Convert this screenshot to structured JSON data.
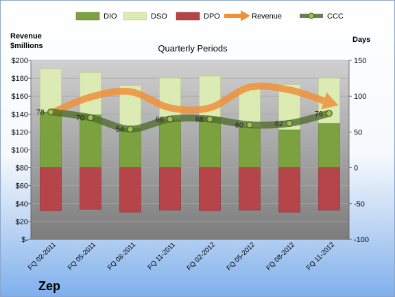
{
  "chart_data": {
    "type": "bar",
    "title": "Quarterly Periods",
    "company": "Zep",
    "left_axis": {
      "title_line1": "Revenue",
      "title_line2": "$millions",
      "ylim": [
        0,
        200
      ],
      "ticks": [
        0,
        20,
        40,
        60,
        80,
        100,
        120,
        140,
        160,
        180,
        200
      ],
      "tick_labels": [
        "$-",
        "$20",
        "$40",
        "$60",
        "$80",
        "$100",
        "$120",
        "$140",
        "$160",
        "$180",
        "$200"
      ]
    },
    "right_axis": {
      "title": "Days",
      "ylim": [
        -100,
        150
      ],
      "ticks": [
        -100,
        -50,
        0,
        50,
        100,
        150
      ],
      "tick_labels": [
        "-100",
        "-50",
        "0",
        "50",
        "100",
        "150"
      ]
    },
    "categories": [
      "FQ 02-2011",
      "FQ 05-2011",
      "FQ 08-2011",
      "FQ 11-2011",
      "FQ 02-2012",
      "FQ 05-2012",
      "FQ 08-2012",
      "FQ 11-2012"
    ],
    "legend": [
      {
        "name": "DIO",
        "kind": "bar",
        "color": "#7ba23f"
      },
      {
        "name": "DSO",
        "kind": "bar",
        "color": "#dcebb4"
      },
      {
        "name": "DPO",
        "kind": "bar",
        "color": "#b6454a"
      },
      {
        "name": "Revenue",
        "kind": "arrow",
        "color": "#f0913a"
      },
      {
        "name": "CCC",
        "kind": "line-marker",
        "color": "#4f6b2a"
      }
    ],
    "series": [
      {
        "name": "DIO",
        "axis": "days",
        "values": [
          78,
          74,
          55,
          67,
          70,
          56,
          53,
          62
        ]
      },
      {
        "name": "DSO",
        "axis": "days",
        "values": [
          60,
          59,
          60,
          58,
          58,
          57,
          63,
          63
        ]
      },
      {
        "name": "DPO",
        "axis": "days",
        "values": [
          -60,
          -58,
          -62,
          -59,
          -60,
          -59,
          -62,
          -59
        ]
      },
      {
        "name": "Revenue",
        "axis": "revenue",
        "values": [
          141,
          159,
          165,
          147,
          147,
          170,
          167,
          153
        ]
      },
      {
        "name": "CCC",
        "axis": "days",
        "values": [
          78,
          70,
          54,
          68,
          68,
          60,
          62,
          76
        ]
      }
    ],
    "ccc_labels": [
      "78",
      "70",
      "54",
      "68",
      "68",
      "60",
      "62",
      "76"
    ],
    "grid": true,
    "legend_position": "top"
  }
}
